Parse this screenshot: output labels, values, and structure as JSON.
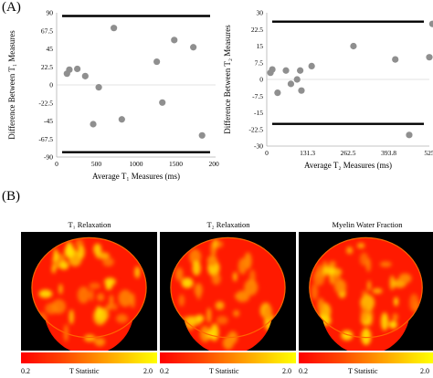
{
  "panels": {
    "a": "(A)",
    "b": "(B)"
  },
  "chart_data": [
    {
      "type": "scatter",
      "xlabel": "Average T₁ Measures (ms)",
      "ylabel": "Difference Between T₁ Measures",
      "xlim": [
        0,
        2000
      ],
      "ylim": [
        -90,
        90
      ],
      "xticks": [
        "0",
        "500",
        "1000",
        "1500",
        "2000"
      ],
      "yticks": [
        "90",
        "67.5",
        "45",
        "22.5",
        "0",
        "-22.5",
        "-45",
        "-67.5",
        "-90"
      ],
      "limit_lines": [
        86,
        -84
      ],
      "points": [
        {
          "x": 130,
          "y": 14
        },
        {
          "x": 160,
          "y": 19
        },
        {
          "x": 260,
          "y": 20
        },
        {
          "x": 360,
          "y": 11
        },
        {
          "x": 460,
          "y": -49
        },
        {
          "x": 530,
          "y": -3
        },
        {
          "x": 720,
          "y": 71
        },
        {
          "x": 820,
          "y": -43
        },
        {
          "x": 1260,
          "y": 29
        },
        {
          "x": 1330,
          "y": -22
        },
        {
          "x": 1480,
          "y": 56
        },
        {
          "x": 1720,
          "y": 47
        },
        {
          "x": 1830,
          "y": -63
        }
      ]
    },
    {
      "type": "scatter",
      "xlabel": "Average T₂ Measures (ms)",
      "ylabel": "Difference Between T₂ Measures",
      "xlim": [
        0,
        525
      ],
      "ylim": [
        -30,
        30
      ],
      "xticks": [
        "0",
        "131.3",
        "262.5",
        "393.8",
        "525"
      ],
      "yticks": [
        "30",
        "22.5",
        "15",
        "7.5",
        "0",
        "-7.5",
        "-15",
        "-22.5",
        "-30"
      ],
      "limit_lines": [
        26,
        -20
      ],
      "points": [
        {
          "x": 12,
          "y": 3
        },
        {
          "x": 18,
          "y": 4.5
        },
        {
          "x": 35,
          "y": -6
        },
        {
          "x": 62,
          "y": 4
        },
        {
          "x": 78,
          "y": -2
        },
        {
          "x": 98,
          "y": 0
        },
        {
          "x": 108,
          "y": 4
        },
        {
          "x": 112,
          "y": -5
        },
        {
          "x": 145,
          "y": 6
        },
        {
          "x": 280,
          "y": 15
        },
        {
          "x": 415,
          "y": 9
        },
        {
          "x": 460,
          "y": -25
        },
        {
          "x": 525,
          "y": 10
        },
        {
          "x": 535,
          "y": 25
        }
      ]
    }
  ],
  "brains": [
    {
      "title": "T₁ Relaxation",
      "seed": 3
    },
    {
      "title": "T₂ Relaxation",
      "seed": 11
    },
    {
      "title": "Myelin Water Fraction",
      "seed": 19
    }
  ],
  "colorbar": {
    "min": "0.2",
    "label": "T Statistic",
    "max": "2.0"
  },
  "colors": {
    "point": "#8f8f8f",
    "limit": "#000000",
    "brain_base": "#ff1a00",
    "brain_hot": "#ffe000"
  }
}
